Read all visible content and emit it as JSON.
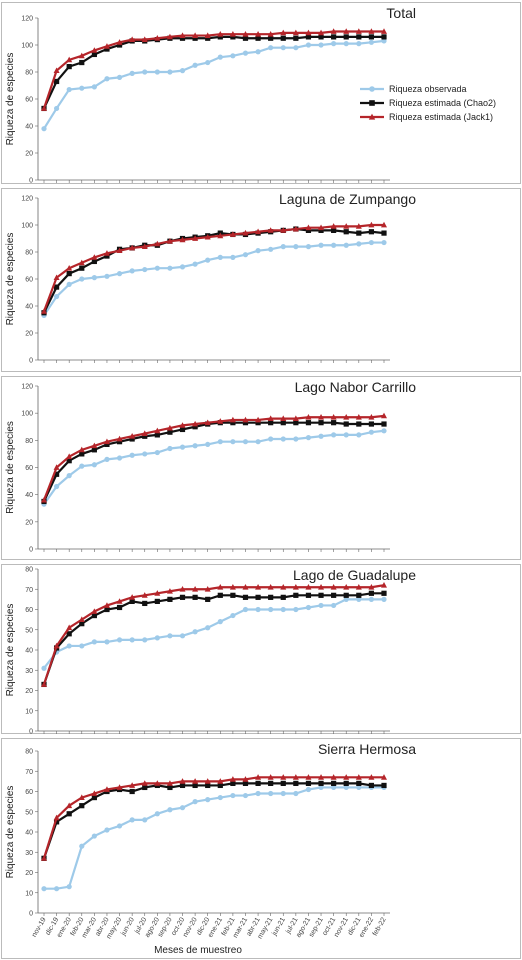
{
  "chart_data": [
    {
      "type": "line",
      "title": "Total",
      "ylabel": "Riqueza de especies",
      "ylim": [
        0,
        120
      ],
      "yticks": [
        0,
        20,
        40,
        60,
        80,
        100,
        120
      ],
      "series": [
        {
          "name": "Riqueza observada",
          "color": "#9ecae9",
          "marker": "circle",
          "values": [
            38,
            53,
            67,
            68,
            69,
            75,
            76,
            79,
            80,
            80,
            80,
            81,
            85,
            87,
            91,
            92,
            94,
            95,
            98,
            98,
            98,
            100,
            100,
            101,
            101,
            101,
            102,
            103
          ]
        },
        {
          "name": "Riqueza estimada (Chao2)",
          "color": "#111111",
          "marker": "square",
          "values": [
            53,
            73,
            84,
            87,
            93,
            97,
            100,
            103,
            103,
            104,
            105,
            105,
            105,
            105,
            106,
            106,
            105,
            105,
            105,
            105,
            105,
            106,
            106,
            106,
            106,
            106,
            106,
            106
          ]
        },
        {
          "name": "Riqueza estimada (Jack1)",
          "color": "#b5252a",
          "marker": "triangle",
          "values": [
            53,
            81,
            89,
            92,
            96,
            99,
            102,
            104,
            104,
            105,
            106,
            107,
            107,
            107,
            108,
            108,
            108,
            108,
            108,
            109,
            109,
            109,
            109,
            110,
            110,
            110,
            110,
            110
          ]
        }
      ]
    },
    {
      "type": "line",
      "title": "Laguna de Zumpango",
      "ylabel": "Riqueza de especies",
      "ylim": [
        0,
        120
      ],
      "yticks": [
        0,
        20,
        40,
        60,
        80,
        100,
        120
      ],
      "series": [
        {
          "name": "Riqueza observada",
          "color": "#9ecae9",
          "marker": "circle",
          "values": [
            33,
            47,
            56,
            60,
            61,
            62,
            64,
            66,
            67,
            68,
            68,
            69,
            71,
            74,
            76,
            76,
            78,
            81,
            82,
            84,
            84,
            84,
            85,
            85,
            85,
            86,
            87,
            87
          ]
        },
        {
          "name": "Riqueza estimada (Chao2)",
          "color": "#111111",
          "marker": "square",
          "values": [
            35,
            54,
            64,
            68,
            73,
            77,
            82,
            83,
            85,
            85,
            88,
            90,
            91,
            92,
            94,
            93,
            93,
            94,
            95,
            96,
            97,
            96,
            96,
            96,
            95,
            94,
            95,
            94
          ]
        },
        {
          "name": "Riqueza estimada (Jack1)",
          "color": "#b5252a",
          "marker": "triangle",
          "values": [
            36,
            61,
            68,
            72,
            76,
            79,
            81,
            83,
            84,
            86,
            88,
            89,
            90,
            91,
            92,
            93,
            94,
            95,
            96,
            96,
            97,
            98,
            98,
            99,
            99,
            99,
            100,
            100
          ]
        }
      ]
    },
    {
      "type": "line",
      "title": "Lago Nabor Carrillo",
      "ylabel": "Riqueza de especies",
      "ylim": [
        0,
        120
      ],
      "yticks": [
        0,
        20,
        40,
        60,
        80,
        100,
        120
      ],
      "series": [
        {
          "name": "Riqueza observada",
          "color": "#9ecae9",
          "marker": "circle",
          "values": [
            33,
            46,
            54,
            61,
            62,
            66,
            67,
            69,
            70,
            71,
            74,
            75,
            76,
            77,
            79,
            79,
            79,
            79,
            81,
            81,
            81,
            82,
            83,
            84,
            84,
            84,
            86,
            87
          ]
        },
        {
          "name": "Riqueza estimada (Chao2)",
          "color": "#111111",
          "marker": "square",
          "values": [
            35,
            55,
            65,
            70,
            73,
            77,
            79,
            81,
            83,
            84,
            86,
            88,
            90,
            92,
            93,
            93,
            93,
            93,
            93,
            93,
            93,
            93,
            93,
            93,
            92,
            92,
            92,
            92
          ]
        },
        {
          "name": "Riqueza estimada (Jack1)",
          "color": "#b5252a",
          "marker": "triangle",
          "values": [
            36,
            60,
            68,
            73,
            76,
            79,
            81,
            83,
            85,
            87,
            89,
            91,
            92,
            93,
            94,
            95,
            95,
            95,
            96,
            96,
            96,
            97,
            97,
            97,
            97,
            97,
            97,
            98
          ]
        }
      ]
    },
    {
      "type": "line",
      "title": "Lago de Guadalupe",
      "ylabel": "Riqueza de especies",
      "ylim": [
        0,
        80
      ],
      "yticks": [
        0,
        10,
        20,
        30,
        40,
        50,
        60,
        70,
        80
      ],
      "series": [
        {
          "name": "Riqueza observada",
          "color": "#9ecae9",
          "marker": "circle",
          "values": [
            31,
            39,
            42,
            42,
            44,
            44,
            45,
            45,
            45,
            46,
            47,
            47,
            49,
            51,
            54,
            57,
            60,
            60,
            60,
            60,
            60,
            61,
            62,
            62,
            65,
            65,
            65,
            65
          ]
        },
        {
          "name": "Riqueza estimada (Chao2)",
          "color": "#111111",
          "marker": "square",
          "values": [
            23,
            41,
            48,
            53,
            57,
            60,
            61,
            64,
            63,
            64,
            65,
            66,
            66,
            65,
            67,
            67,
            66,
            66,
            66,
            66,
            67,
            67,
            67,
            67,
            67,
            67,
            68,
            68
          ]
        },
        {
          "name": "Riqueza estimada (Jack1)",
          "color": "#b5252a",
          "marker": "triangle",
          "values": [
            23,
            42,
            51,
            55,
            59,
            62,
            64,
            66,
            67,
            68,
            69,
            70,
            70,
            70,
            71,
            71,
            71,
            71,
            71,
            71,
            71,
            71,
            71,
            71,
            71,
            71,
            71,
            72
          ]
        }
      ]
    },
    {
      "type": "line",
      "title": "Sierra Hermosa",
      "ylabel": "Riqueza de especies",
      "xlabel": "Meses de muestreo",
      "ylim": [
        0,
        80
      ],
      "yticks": [
        0,
        10,
        20,
        30,
        40,
        50,
        60,
        70,
        80
      ],
      "categories": [
        "nov-19",
        "dic-19",
        "ene-20",
        "feb-20",
        "mar-20",
        "abr-20",
        "may-20",
        "jun-20",
        "jul-20",
        "ago-20",
        "sep-20",
        "oct-20",
        "nov-20",
        "dic-20",
        "ene-21",
        "feb-21",
        "mar-21",
        "abr-21",
        "may-21",
        "jun-21",
        "jul-21",
        "ago-21",
        "sep-21",
        "oct-21",
        "nov-21",
        "dic-21",
        "ene-22",
        "feb-22"
      ],
      "series": [
        {
          "name": "Riqueza observada",
          "color": "#9ecae9",
          "marker": "circle",
          "values": [
            12,
            12,
            13,
            33,
            38,
            41,
            43,
            46,
            46,
            49,
            51,
            52,
            55,
            56,
            57,
            58,
            58,
            59,
            59,
            59,
            59,
            61,
            62,
            62,
            62,
            62,
            62,
            62
          ]
        },
        {
          "name": "Riqueza estimada (Chao2)",
          "color": "#111111",
          "marker": "square",
          "values": [
            27,
            45,
            49,
            53,
            57,
            60,
            61,
            60,
            62,
            63,
            62,
            63,
            63,
            63,
            63,
            64,
            64,
            64,
            64,
            64,
            64,
            64,
            64,
            64,
            64,
            64,
            63,
            63
          ]
        },
        {
          "name": "Riqueza estimada (Jack1)",
          "color": "#b5252a",
          "marker": "triangle",
          "values": [
            27,
            47,
            53,
            57,
            59,
            61,
            62,
            63,
            64,
            64,
            64,
            65,
            65,
            65,
            65,
            66,
            66,
            67,
            67,
            67,
            67,
            67,
            67,
            67,
            67,
            67,
            67,
            67
          ]
        }
      ]
    }
  ]
}
